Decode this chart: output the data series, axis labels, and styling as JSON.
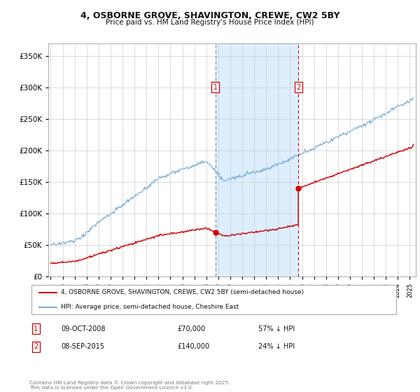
{
  "title": "4, OSBORNE GROVE, SHAVINGTON, CREWE, CW2 5BY",
  "subtitle": "Price paid vs. HM Land Registry's House Price Index (HPI)",
  "legend1": "4, OSBORNE GROVE, SHAVINGTON, CREWE, CW2 5BY (semi-detached house)",
  "legend2": "HPI: Average price, semi-detached house, Cheshire East",
  "transaction1_date": "09-OCT-2008",
  "transaction1_price": 70000,
  "transaction1_label": "57% ↓ HPI",
  "transaction2_date": "08-SEP-2015",
  "transaction2_price": 140000,
  "transaction2_label": "24% ↓ HPI",
  "footnote": "Contains HM Land Registry data © Crown copyright and database right 2025.\nThis data is licensed under the Open Government Licence v3.0.",
  "red_color": "#cc0000",
  "blue_color": "#7aaed6",
  "shade_color": "#ddeeff",
  "vline1_color": "#888888",
  "vline2_color": "#cc0000",
  "ylim": [
    0,
    370000
  ],
  "xlim_start": 1994.8,
  "xlim_end": 2025.5,
  "transaction1_x": 2008.77,
  "transaction2_x": 2015.68,
  "marker1_y": 300000,
  "marker2_y": 300000
}
